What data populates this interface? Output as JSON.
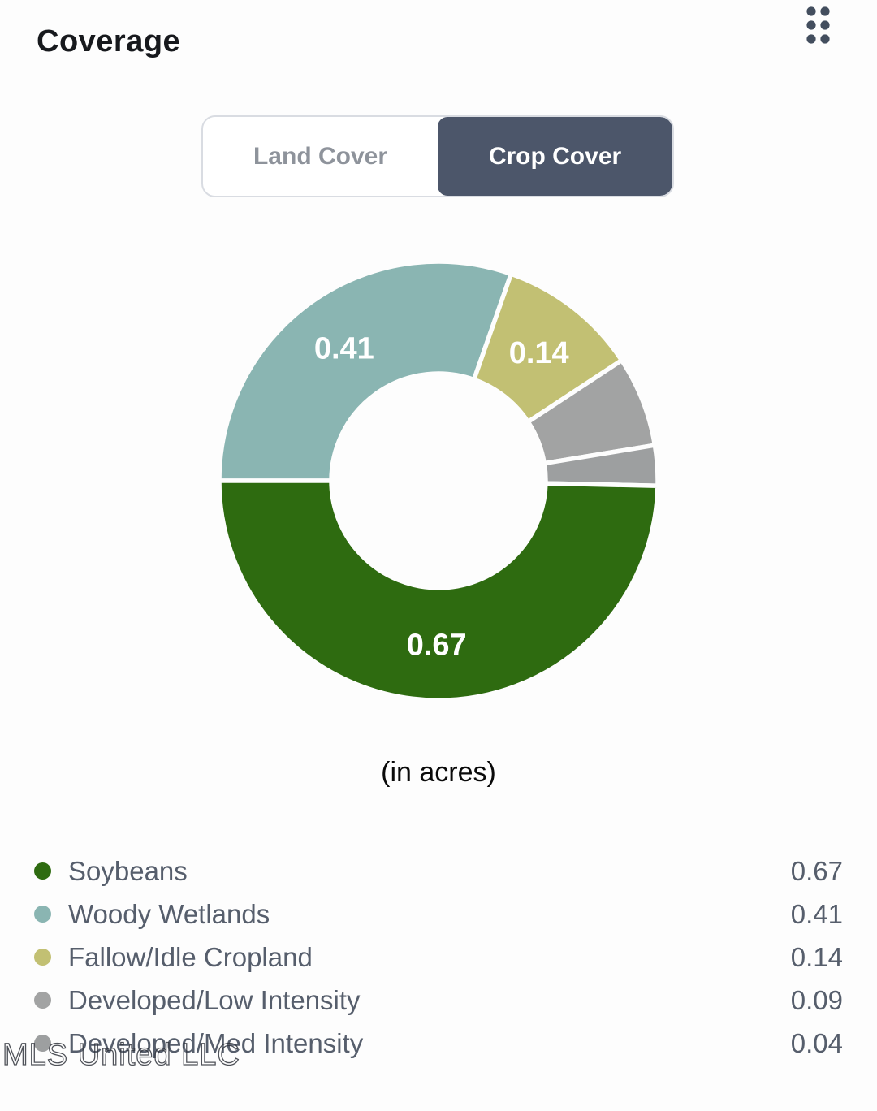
{
  "header": {
    "title": "Coverage",
    "drag_handle_icon": "drag-handle",
    "drag_handle_color": "#434e5e"
  },
  "toggle": {
    "options": [
      {
        "label": "Land Cover",
        "active": false
      },
      {
        "label": "Crop Cover",
        "active": true
      }
    ],
    "active_bg": "#4c566a",
    "inactive_text": "#8e939b"
  },
  "chart_data": {
    "type": "pie",
    "subtype": "donut",
    "title": "Crop Cover",
    "unit_caption": "(in acres)",
    "legend_position": "bottom",
    "series": [
      {
        "name": "Soybeans",
        "value": 0.67,
        "color": "#2e6b10",
        "label_visible": true
      },
      {
        "name": "Woody Wetlands",
        "value": 0.41,
        "color": "#8ab5b2",
        "label_visible": true
      },
      {
        "name": "Fallow/Idle Cropland",
        "value": 0.14,
        "color": "#c2c073",
        "label_visible": true
      },
      {
        "name": "Developed/Low Intensity",
        "value": 0.09,
        "color": "#a2a3a3",
        "label_visible": false
      },
      {
        "name": "Developed/Med Intensity",
        "value": 0.04,
        "color": "#9d9fa0",
        "label_visible": false
      }
    ],
    "draw_order_clockwise_from_left": [
      "Woody Wetlands",
      "Fallow/Idle Cropland",
      "Developed/Low Intensity",
      "Developed/Med Intensity",
      "Soybeans"
    ]
  },
  "watermark": {
    "text": "MLS United LLC"
  }
}
